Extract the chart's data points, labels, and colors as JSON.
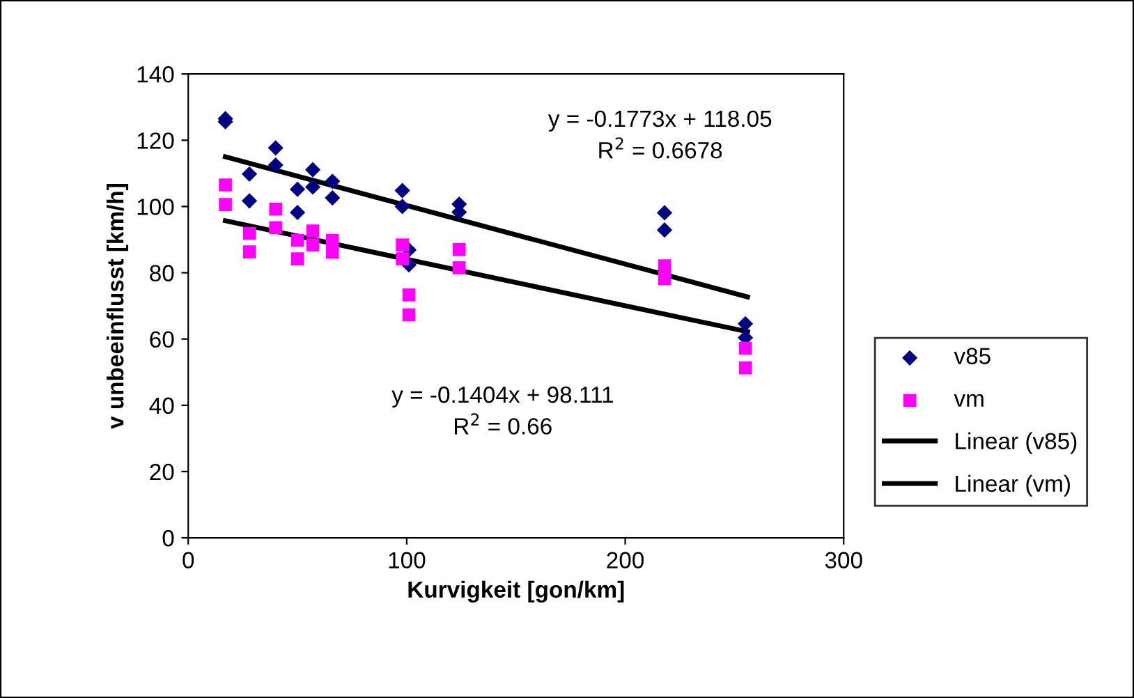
{
  "chart_data": {
    "type": "scatter",
    "xlabel": "Kurvigkeit [gon/km]",
    "ylabel": "v unbeeinflusst [km/h]",
    "xlim": [
      0,
      300
    ],
    "xticks": [
      0,
      100,
      200,
      300
    ],
    "ylim": [
      0,
      140
    ],
    "yticks": [
      0,
      20,
      40,
      60,
      80,
      100,
      120,
      140
    ],
    "grid": false,
    "legend": "right",
    "series": [
      {
        "name": "v85",
        "color": "#000080",
        "marker": "diamond",
        "x": [
          17,
          17,
          28,
          28,
          40,
          40,
          50,
          50,
          57,
          57,
          66,
          66,
          98,
          98,
          101,
          101,
          124,
          124,
          218,
          218,
          255,
          255
        ],
        "values": [
          126.5,
          125.6,
          109.8,
          101.7,
          117.7,
          112.5,
          105.2,
          98.2,
          111.1,
          105.9,
          107.6,
          102.6,
          104.8,
          100.0,
          86.9,
          82.4,
          100.7,
          98.3,
          98.1,
          92.9,
          64.6,
          60.4
        ]
      },
      {
        "name": "vm",
        "color": "#ff00ff",
        "marker": "square",
        "x": [
          17,
          17,
          28,
          28,
          40,
          40,
          50,
          50,
          57,
          57,
          66,
          66,
          98,
          98,
          101,
          101,
          124,
          124,
          218,
          218,
          255,
          255
        ],
        "values": [
          106.5,
          100.6,
          91.9,
          86.3,
          99.2,
          93.6,
          89.8,
          84.2,
          92.6,
          88.4,
          89.8,
          86.2,
          88.4,
          84.2,
          73.3,
          67.3,
          87.0,
          81.5,
          82.1,
          78.2,
          57.2,
          51.3
        ]
      },
      {
        "name": "Linear (v85)",
        "type": "line",
        "color": "#000000",
        "marker": "none",
        "line_style": "solid",
        "x": [
          17,
          256
        ],
        "values": [
          115.0,
          72.7
        ]
      },
      {
        "name": "Linear (vm)",
        "type": "line",
        "color": "#000000",
        "marker": "none",
        "line_style": "solid",
        "x": [
          17,
          256
        ],
        "values": [
          95.7,
          62.2
        ]
      }
    ],
    "annotations": [
      "y = -0.1773x + 118.05\nR$^{2}$ = 0.6678",
      "y = -0.1404x + 98.111\nR$^{2}$ = 0.66"
    ]
  }
}
